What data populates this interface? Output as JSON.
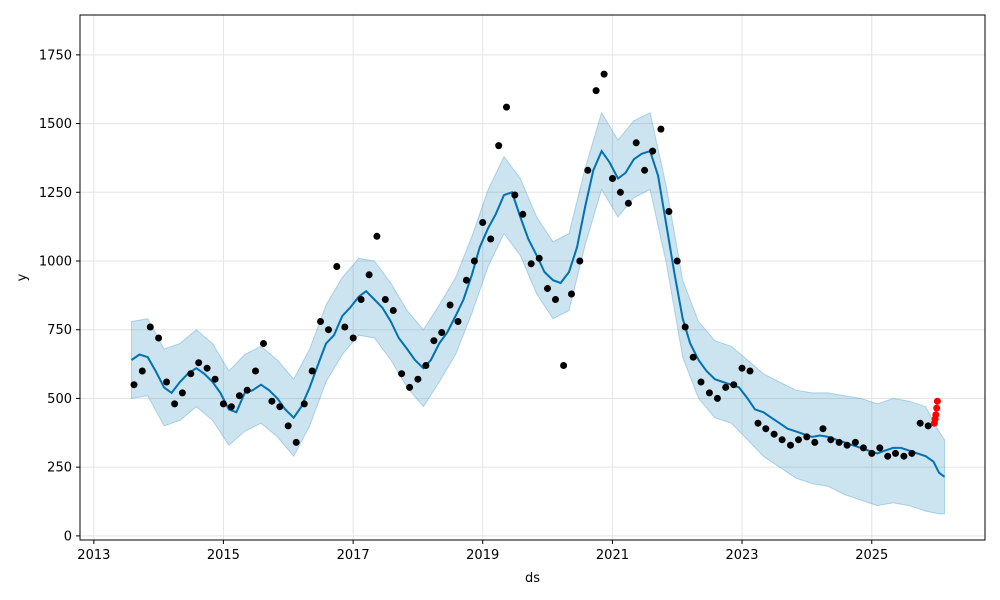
{
  "chart_data": {
    "type": "line",
    "title": "",
    "xlabel": "ds",
    "ylabel": "y",
    "xlim": [
      "2012-10-15",
      "2026-10-01"
    ],
    "ylim": [
      -15,
      1895
    ],
    "grid": true,
    "x_ticks": [
      {
        "label": "2013",
        "date": "2013-01-01"
      },
      {
        "label": "2015",
        "date": "2015-01-01"
      },
      {
        "label": "2017",
        "date": "2017-01-01"
      },
      {
        "label": "2019",
        "date": "2019-01-01"
      },
      {
        "label": "2021",
        "date": "2021-01-01"
      },
      {
        "label": "2023",
        "date": "2023-01-01"
      },
      {
        "label": "2025",
        "date": "2025-01-01"
      }
    ],
    "y_ticks": [
      {
        "label": "0",
        "value": 0
      },
      {
        "label": "250",
        "value": 250
      },
      {
        "label": "500",
        "value": 500
      },
      {
        "label": "750",
        "value": 750
      },
      {
        "label": "1000",
        "value": 1000
      },
      {
        "label": "1250",
        "value": 1250
      },
      {
        "label": "1500",
        "value": 1500
      },
      {
        "label": "1750",
        "value": 1750
      }
    ],
    "colors": {
      "forecast_line": "#0072B2",
      "interval_fill": "#0072B2",
      "observed": "#000000",
      "highlight": "#ff0000",
      "grid": "#e5e5e5"
    },
    "series": [
      {
        "role": "observed",
        "points": [
          [
            "2013-08-15",
            550
          ],
          [
            "2013-10-01",
            600
          ],
          [
            "2013-11-15",
            760
          ],
          [
            "2014-01-01",
            720
          ],
          [
            "2014-02-15",
            560
          ],
          [
            "2014-04-01",
            480
          ],
          [
            "2014-05-15",
            520
          ],
          [
            "2014-07-01",
            590
          ],
          [
            "2014-08-15",
            630
          ],
          [
            "2014-10-01",
            610
          ],
          [
            "2014-11-15",
            570
          ],
          [
            "2015-01-01",
            480
          ],
          [
            "2015-02-15",
            470
          ],
          [
            "2015-04-01",
            510
          ],
          [
            "2015-05-15",
            530
          ],
          [
            "2015-07-01",
            600
          ],
          [
            "2015-08-15",
            700
          ],
          [
            "2015-10-01",
            490
          ],
          [
            "2015-11-15",
            470
          ],
          [
            "2016-01-01",
            400
          ],
          [
            "2016-02-15",
            340
          ],
          [
            "2016-04-01",
            480
          ],
          [
            "2016-05-15",
            600
          ],
          [
            "2016-07-01",
            780
          ],
          [
            "2016-08-15",
            750
          ],
          [
            "2016-10-01",
            980
          ],
          [
            "2016-11-15",
            760
          ],
          [
            "2017-01-01",
            720
          ],
          [
            "2017-02-15",
            860
          ],
          [
            "2017-04-01",
            950
          ],
          [
            "2017-05-15",
            1090
          ],
          [
            "2017-07-01",
            860
          ],
          [
            "2017-08-15",
            820
          ],
          [
            "2017-10-01",
            590
          ],
          [
            "2017-11-15",
            540
          ],
          [
            "2018-01-01",
            570
          ],
          [
            "2018-02-15",
            620
          ],
          [
            "2018-04-01",
            710
          ],
          [
            "2018-05-15",
            740
          ],
          [
            "2018-07-01",
            840
          ],
          [
            "2018-08-15",
            780
          ],
          [
            "2018-10-01",
            930
          ],
          [
            "2018-11-15",
            1000
          ],
          [
            "2019-01-01",
            1140
          ],
          [
            "2019-02-15",
            1080
          ],
          [
            "2019-04-01",
            1420
          ],
          [
            "2019-05-15",
            1560
          ],
          [
            "2019-07-01",
            1240
          ],
          [
            "2019-08-15",
            1170
          ],
          [
            "2019-10-01",
            990
          ],
          [
            "2019-11-15",
            1010
          ],
          [
            "2020-01-01",
            900
          ],
          [
            "2020-02-15",
            860
          ],
          [
            "2020-04-01",
            620
          ],
          [
            "2020-05-15",
            880
          ],
          [
            "2020-07-01",
            1000
          ],
          [
            "2020-08-15",
            1330
          ],
          [
            "2020-10-01",
            1620
          ],
          [
            "2020-11-15",
            1680
          ],
          [
            "2021-01-01",
            1300
          ],
          [
            "2021-02-15",
            1250
          ],
          [
            "2021-04-01",
            1210
          ],
          [
            "2021-05-15",
            1430
          ],
          [
            "2021-07-01",
            1330
          ],
          [
            "2021-08-15",
            1400
          ],
          [
            "2021-10-01",
            1480
          ],
          [
            "2021-11-15",
            1180
          ],
          [
            "2022-01-01",
            1000
          ],
          [
            "2022-02-15",
            760
          ],
          [
            "2022-04-01",
            650
          ],
          [
            "2022-05-15",
            560
          ],
          [
            "2022-07-01",
            520
          ],
          [
            "2022-08-15",
            500
          ],
          [
            "2022-10-01",
            540
          ],
          [
            "2022-11-15",
            550
          ],
          [
            "2023-01-01",
            610
          ],
          [
            "2023-02-15",
            600
          ],
          [
            "2023-04-01",
            410
          ],
          [
            "2023-05-15",
            390
          ],
          [
            "2023-07-01",
            370
          ],
          [
            "2023-08-15",
            350
          ],
          [
            "2023-10-01",
            330
          ],
          [
            "2023-11-15",
            350
          ],
          [
            "2024-01-01",
            360
          ],
          [
            "2024-02-15",
            340
          ],
          [
            "2024-04-01",
            390
          ],
          [
            "2024-05-15",
            350
          ],
          [
            "2024-07-01",
            340
          ],
          [
            "2024-08-15",
            330
          ],
          [
            "2024-10-01",
            340
          ],
          [
            "2024-11-15",
            320
          ],
          [
            "2025-01-01",
            300
          ],
          [
            "2025-02-15",
            320
          ],
          [
            "2025-04-01",
            290
          ],
          [
            "2025-05-15",
            300
          ],
          [
            "2025-07-01",
            290
          ],
          [
            "2025-08-15",
            300
          ],
          [
            "2025-10-01",
            410
          ],
          [
            "2025-11-15",
            400
          ]
        ]
      },
      {
        "role": "highlight",
        "points": [
          [
            "2025-12-20",
            410
          ],
          [
            "2025-12-24",
            425
          ],
          [
            "2025-12-28",
            440
          ],
          [
            "2026-01-02",
            465
          ],
          [
            "2026-01-06",
            490
          ]
        ]
      },
      {
        "role": "forecast",
        "points": [
          [
            "2013-08-01",
            640
          ],
          [
            "2013-09-15",
            660
          ],
          [
            "2013-11-01",
            650
          ],
          [
            "2013-12-15",
            600
          ],
          [
            "2014-02-01",
            540
          ],
          [
            "2014-03-15",
            520
          ],
          [
            "2014-05-01",
            560
          ],
          [
            "2014-06-15",
            590
          ],
          [
            "2014-08-01",
            610
          ],
          [
            "2014-09-15",
            590
          ],
          [
            "2014-11-01",
            560
          ],
          [
            "2014-12-15",
            520
          ],
          [
            "2015-02-01",
            460
          ],
          [
            "2015-03-15",
            450
          ],
          [
            "2015-05-01",
            520
          ],
          [
            "2015-06-15",
            530
          ],
          [
            "2015-08-01",
            550
          ],
          [
            "2015-09-15",
            530
          ],
          [
            "2015-11-01",
            500
          ],
          [
            "2015-12-15",
            460
          ],
          [
            "2016-02-01",
            430
          ],
          [
            "2016-03-15",
            470
          ],
          [
            "2016-05-01",
            540
          ],
          [
            "2016-06-15",
            620
          ],
          [
            "2016-08-01",
            700
          ],
          [
            "2016-09-15",
            730
          ],
          [
            "2016-11-01",
            800
          ],
          [
            "2016-12-15",
            830
          ],
          [
            "2017-02-01",
            870
          ],
          [
            "2017-03-15",
            890
          ],
          [
            "2017-05-01",
            860
          ],
          [
            "2017-06-15",
            830
          ],
          [
            "2017-08-01",
            780
          ],
          [
            "2017-09-15",
            720
          ],
          [
            "2017-11-01",
            680
          ],
          [
            "2017-12-15",
            640
          ],
          [
            "2018-02-01",
            610
          ],
          [
            "2018-03-15",
            640
          ],
          [
            "2018-05-01",
            700
          ],
          [
            "2018-06-15",
            740
          ],
          [
            "2018-08-01",
            800
          ],
          [
            "2018-09-15",
            860
          ],
          [
            "2018-11-01",
            950
          ],
          [
            "2018-12-15",
            1050
          ],
          [
            "2019-02-01",
            1120
          ],
          [
            "2019-03-15",
            1170
          ],
          [
            "2019-05-01",
            1240
          ],
          [
            "2019-06-15",
            1250
          ],
          [
            "2019-08-01",
            1160
          ],
          [
            "2019-09-15",
            1080
          ],
          [
            "2019-11-01",
            1020
          ],
          [
            "2019-12-15",
            960
          ],
          [
            "2020-02-01",
            930
          ],
          [
            "2020-03-15",
            920
          ],
          [
            "2020-05-01",
            960
          ],
          [
            "2020-06-15",
            1050
          ],
          [
            "2020-08-01",
            1200
          ],
          [
            "2020-09-15",
            1330
          ],
          [
            "2020-11-01",
            1400
          ],
          [
            "2020-12-15",
            1360
          ],
          [
            "2021-02-01",
            1300
          ],
          [
            "2021-03-15",
            1320
          ],
          [
            "2021-05-01",
            1370
          ],
          [
            "2021-06-15",
            1390
          ],
          [
            "2021-08-01",
            1400
          ],
          [
            "2021-09-15",
            1310
          ],
          [
            "2021-11-01",
            1130
          ],
          [
            "2021-12-15",
            960
          ],
          [
            "2022-02-01",
            790
          ],
          [
            "2022-03-15",
            700
          ],
          [
            "2022-05-01",
            640
          ],
          [
            "2022-06-15",
            600
          ],
          [
            "2022-08-01",
            570
          ],
          [
            "2022-09-15",
            560
          ],
          [
            "2022-11-01",
            550
          ],
          [
            "2022-12-15",
            540
          ],
          [
            "2023-02-01",
            500
          ],
          [
            "2023-03-15",
            460
          ],
          [
            "2023-05-01",
            450
          ],
          [
            "2023-06-15",
            430
          ],
          [
            "2023-08-01",
            410
          ],
          [
            "2023-09-15",
            390
          ],
          [
            "2023-11-01",
            380
          ],
          [
            "2023-12-15",
            370
          ],
          [
            "2024-02-01",
            360
          ],
          [
            "2024-03-15",
            365
          ],
          [
            "2024-05-01",
            360
          ],
          [
            "2024-06-15",
            350
          ],
          [
            "2024-08-01",
            340
          ],
          [
            "2024-09-15",
            330
          ],
          [
            "2024-11-01",
            320
          ],
          [
            "2024-12-15",
            310
          ],
          [
            "2025-02-01",
            300
          ],
          [
            "2025-03-15",
            310
          ],
          [
            "2025-05-01",
            320
          ],
          [
            "2025-06-15",
            320
          ],
          [
            "2025-08-01",
            310
          ],
          [
            "2025-09-15",
            300
          ],
          [
            "2025-11-01",
            290
          ],
          [
            "2025-12-15",
            270
          ],
          [
            "2026-01-15",
            230
          ],
          [
            "2026-02-15",
            215
          ]
        ]
      },
      {
        "role": "interval",
        "points": [
          [
            "2013-08-01",
            500,
            780
          ],
          [
            "2013-11-01",
            510,
            790
          ],
          [
            "2014-02-01",
            400,
            680
          ],
          [
            "2014-05-01",
            420,
            700
          ],
          [
            "2014-08-01",
            470,
            750
          ],
          [
            "2014-11-01",
            420,
            700
          ],
          [
            "2015-02-01",
            330,
            600
          ],
          [
            "2015-05-01",
            380,
            660
          ],
          [
            "2015-08-01",
            410,
            690
          ],
          [
            "2015-11-01",
            360,
            640
          ],
          [
            "2016-02-01",
            290,
            570
          ],
          [
            "2016-05-01",
            400,
            680
          ],
          [
            "2016-08-01",
            560,
            840
          ],
          [
            "2016-11-01",
            660,
            940
          ],
          [
            "2017-02-01",
            730,
            1010
          ],
          [
            "2017-05-01",
            720,
            1000
          ],
          [
            "2017-08-01",
            640,
            920
          ],
          [
            "2017-11-01",
            540,
            820
          ],
          [
            "2018-02-01",
            470,
            750
          ],
          [
            "2018-05-01",
            560,
            840
          ],
          [
            "2018-08-01",
            660,
            940
          ],
          [
            "2018-11-01",
            810,
            1090
          ],
          [
            "2019-02-01",
            980,
            1260
          ],
          [
            "2019-05-01",
            1100,
            1380
          ],
          [
            "2019-08-01",
            1020,
            1300
          ],
          [
            "2019-11-01",
            880,
            1160
          ],
          [
            "2020-02-01",
            790,
            1070
          ],
          [
            "2020-05-01",
            820,
            1100
          ],
          [
            "2020-08-01",
            1060,
            1340
          ],
          [
            "2020-11-01",
            1260,
            1540
          ],
          [
            "2021-02-01",
            1160,
            1440
          ],
          [
            "2021-05-01",
            1230,
            1510
          ],
          [
            "2021-08-01",
            1260,
            1540
          ],
          [
            "2021-11-01",
            990,
            1270
          ],
          [
            "2022-02-01",
            650,
            930
          ],
          [
            "2022-05-01",
            500,
            780
          ],
          [
            "2022-08-01",
            430,
            710
          ],
          [
            "2022-11-01",
            410,
            690
          ],
          [
            "2023-02-01",
            350,
            640
          ],
          [
            "2023-05-01",
            290,
            590
          ],
          [
            "2023-08-01",
            250,
            560
          ],
          [
            "2023-11-01",
            210,
            530
          ],
          [
            "2024-02-01",
            190,
            520
          ],
          [
            "2024-05-01",
            180,
            520
          ],
          [
            "2024-08-01",
            150,
            510
          ],
          [
            "2024-11-01",
            130,
            500
          ],
          [
            "2025-02-01",
            110,
            480
          ],
          [
            "2025-05-01",
            120,
            500
          ],
          [
            "2025-08-01",
            110,
            490
          ],
          [
            "2025-11-01",
            90,
            470
          ],
          [
            "2026-01-15",
            80,
            380
          ],
          [
            "2026-02-15",
            80,
            350
          ]
        ]
      }
    ]
  }
}
